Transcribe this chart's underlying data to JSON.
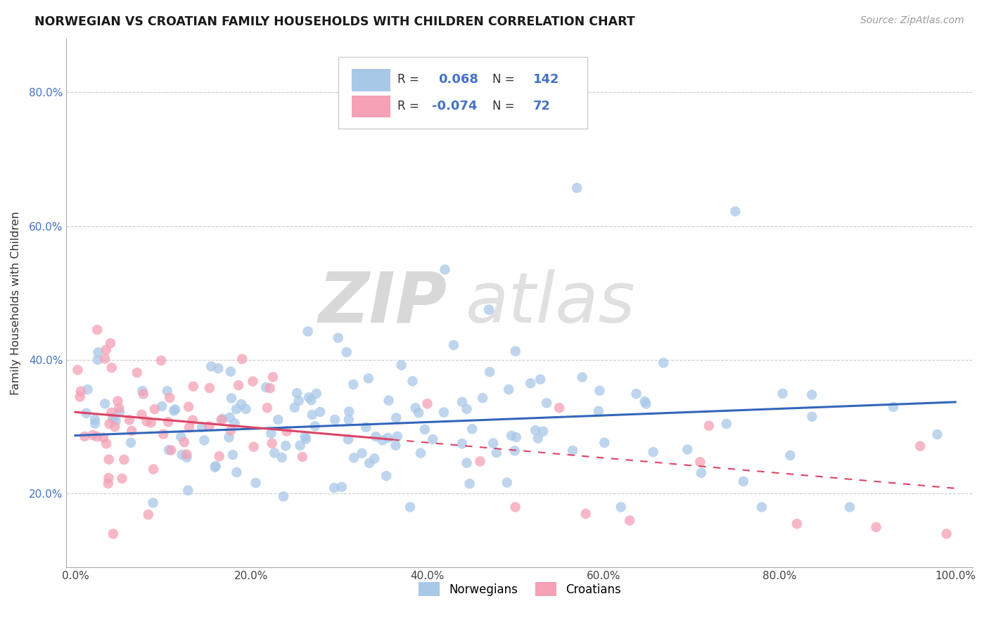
{
  "title": "NORWEGIAN VS CROATIAN FAMILY HOUSEHOLDS WITH CHILDREN CORRELATION CHART",
  "source": "Source: ZipAtlas.com",
  "ylabel": "Family Households with Children",
  "norwegian_R": 0.068,
  "norwegian_N": 142,
  "croatian_R": -0.074,
  "croatian_N": 72,
  "xlim": [
    -0.01,
    1.02
  ],
  "ylim": [
    0.09,
    0.88
  ],
  "yticks": [
    0.2,
    0.4,
    0.6,
    0.8
  ],
  "ytick_labels": [
    "20.0%",
    "40.0%",
    "60.0%",
    "80.0%"
  ],
  "xticks": [
    0.0,
    0.2,
    0.4,
    0.6,
    0.8,
    1.0
  ],
  "xtick_labels": [
    "0.0%",
    "20.0%",
    "40.0%",
    "60.0%",
    "80.0%",
    "100.0%"
  ],
  "norwegian_color": "#a8c8e8",
  "croatian_color": "#f4a0b5",
  "norwegian_line_color": "#3366bb",
  "croatian_line_color": "#dd4466",
  "background_color": "#ffffff",
  "nor_line_y0": 0.287,
  "nor_line_y1": 0.337,
  "cro_line_y0": 0.322,
  "cro_line_y1": 0.208
}
